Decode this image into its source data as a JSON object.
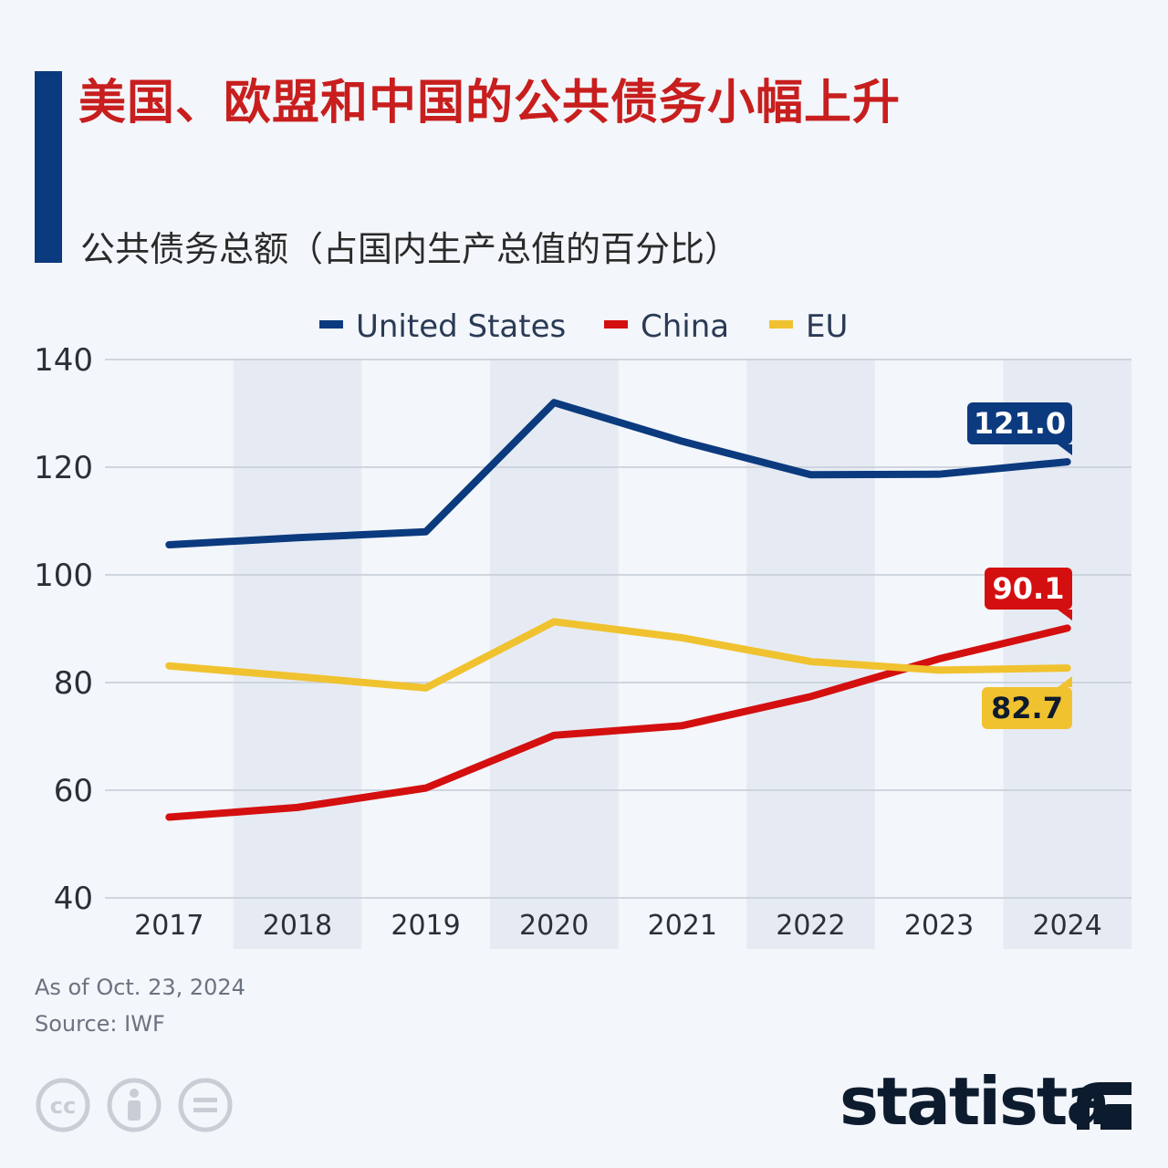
{
  "title": "美国、欧盟和中国的公共债务小幅上升",
  "subtitle": "公共债务总额（占国内生产总值的百分比）",
  "footer": {
    "date_note": "As of Oct. 23, 2024",
    "source": "Source: IWF"
  },
  "brand": {
    "name": "statista"
  },
  "icons": [
    "cc-icon",
    "attribution-icon",
    "no-derivatives-icon",
    "statista-logo-icon"
  ],
  "chart_data": {
    "type": "line",
    "title": "美国、欧盟和中国的公共债务小幅上升",
    "subtitle": "公共债务总额（占国内生产总值的百分比）",
    "categories": [
      "2017",
      "2018",
      "2019",
      "2020",
      "2021",
      "2022",
      "2023",
      "2024"
    ],
    "ylim": [
      40,
      140
    ],
    "yticks": [
      40,
      60,
      80,
      100,
      120,
      140
    ],
    "grid": true,
    "legend_position": "top",
    "series": [
      {
        "name": "United States",
        "color": "#0b3a7e",
        "values": [
          105.6,
          106.9,
          108.0,
          132.0,
          124.8,
          118.6,
          118.7,
          121.0
        ],
        "end_label": "121.0"
      },
      {
        "name": "China",
        "color": "#d40f0f",
        "values": [
          55.0,
          56.8,
          60.4,
          70.2,
          72.0,
          77.4,
          84.4,
          90.1
        ],
        "end_label": "90.1"
      },
      {
        "name": "EU",
        "color": "#f0c230",
        "values": [
          83.1,
          81.1,
          79.0,
          91.3,
          88.3,
          83.9,
          82.3,
          82.7
        ],
        "end_label": "82.7"
      }
    ]
  }
}
